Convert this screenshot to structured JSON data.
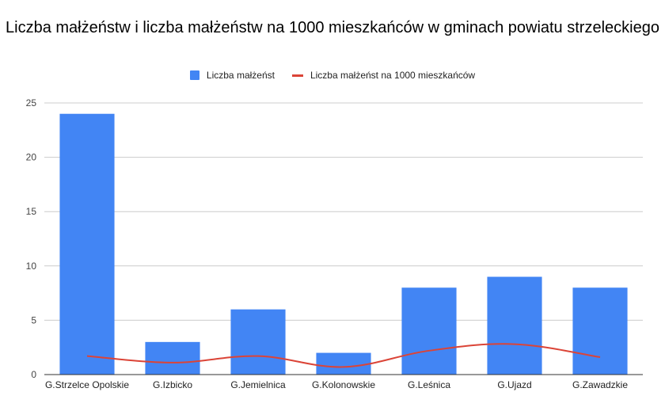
{
  "chart_data": {
    "type": "bar",
    "title": "Liczba małżeństw i liczba małżeństw na 1000 mieszkańców w gminach powiatu strzeleckiego",
    "categories": [
      "G.Strzelce Opolskie",
      "G.Izbicko",
      "G.Jemielnica",
      "G.Kolonowskie",
      "G.Leśnica",
      "G.Ujazd",
      "G.Zawadzkie"
    ],
    "series": [
      {
        "name": "Liczba małżeńst",
        "type": "bar",
        "color": "#4285f4",
        "values": [
          24,
          3,
          6,
          2,
          8,
          9,
          8
        ]
      },
      {
        "name": "Liczba małżeńst na 1000 mieszkańców",
        "type": "line",
        "color": "#db4437",
        "values": [
          1.7,
          1.1,
          1.7,
          0.7,
          2.2,
          2.8,
          1.6
        ]
      }
    ],
    "ylim": [
      0,
      25
    ],
    "yticks": [
      0,
      5,
      10,
      15,
      20,
      25
    ],
    "grid": true,
    "legend_position": "top"
  }
}
